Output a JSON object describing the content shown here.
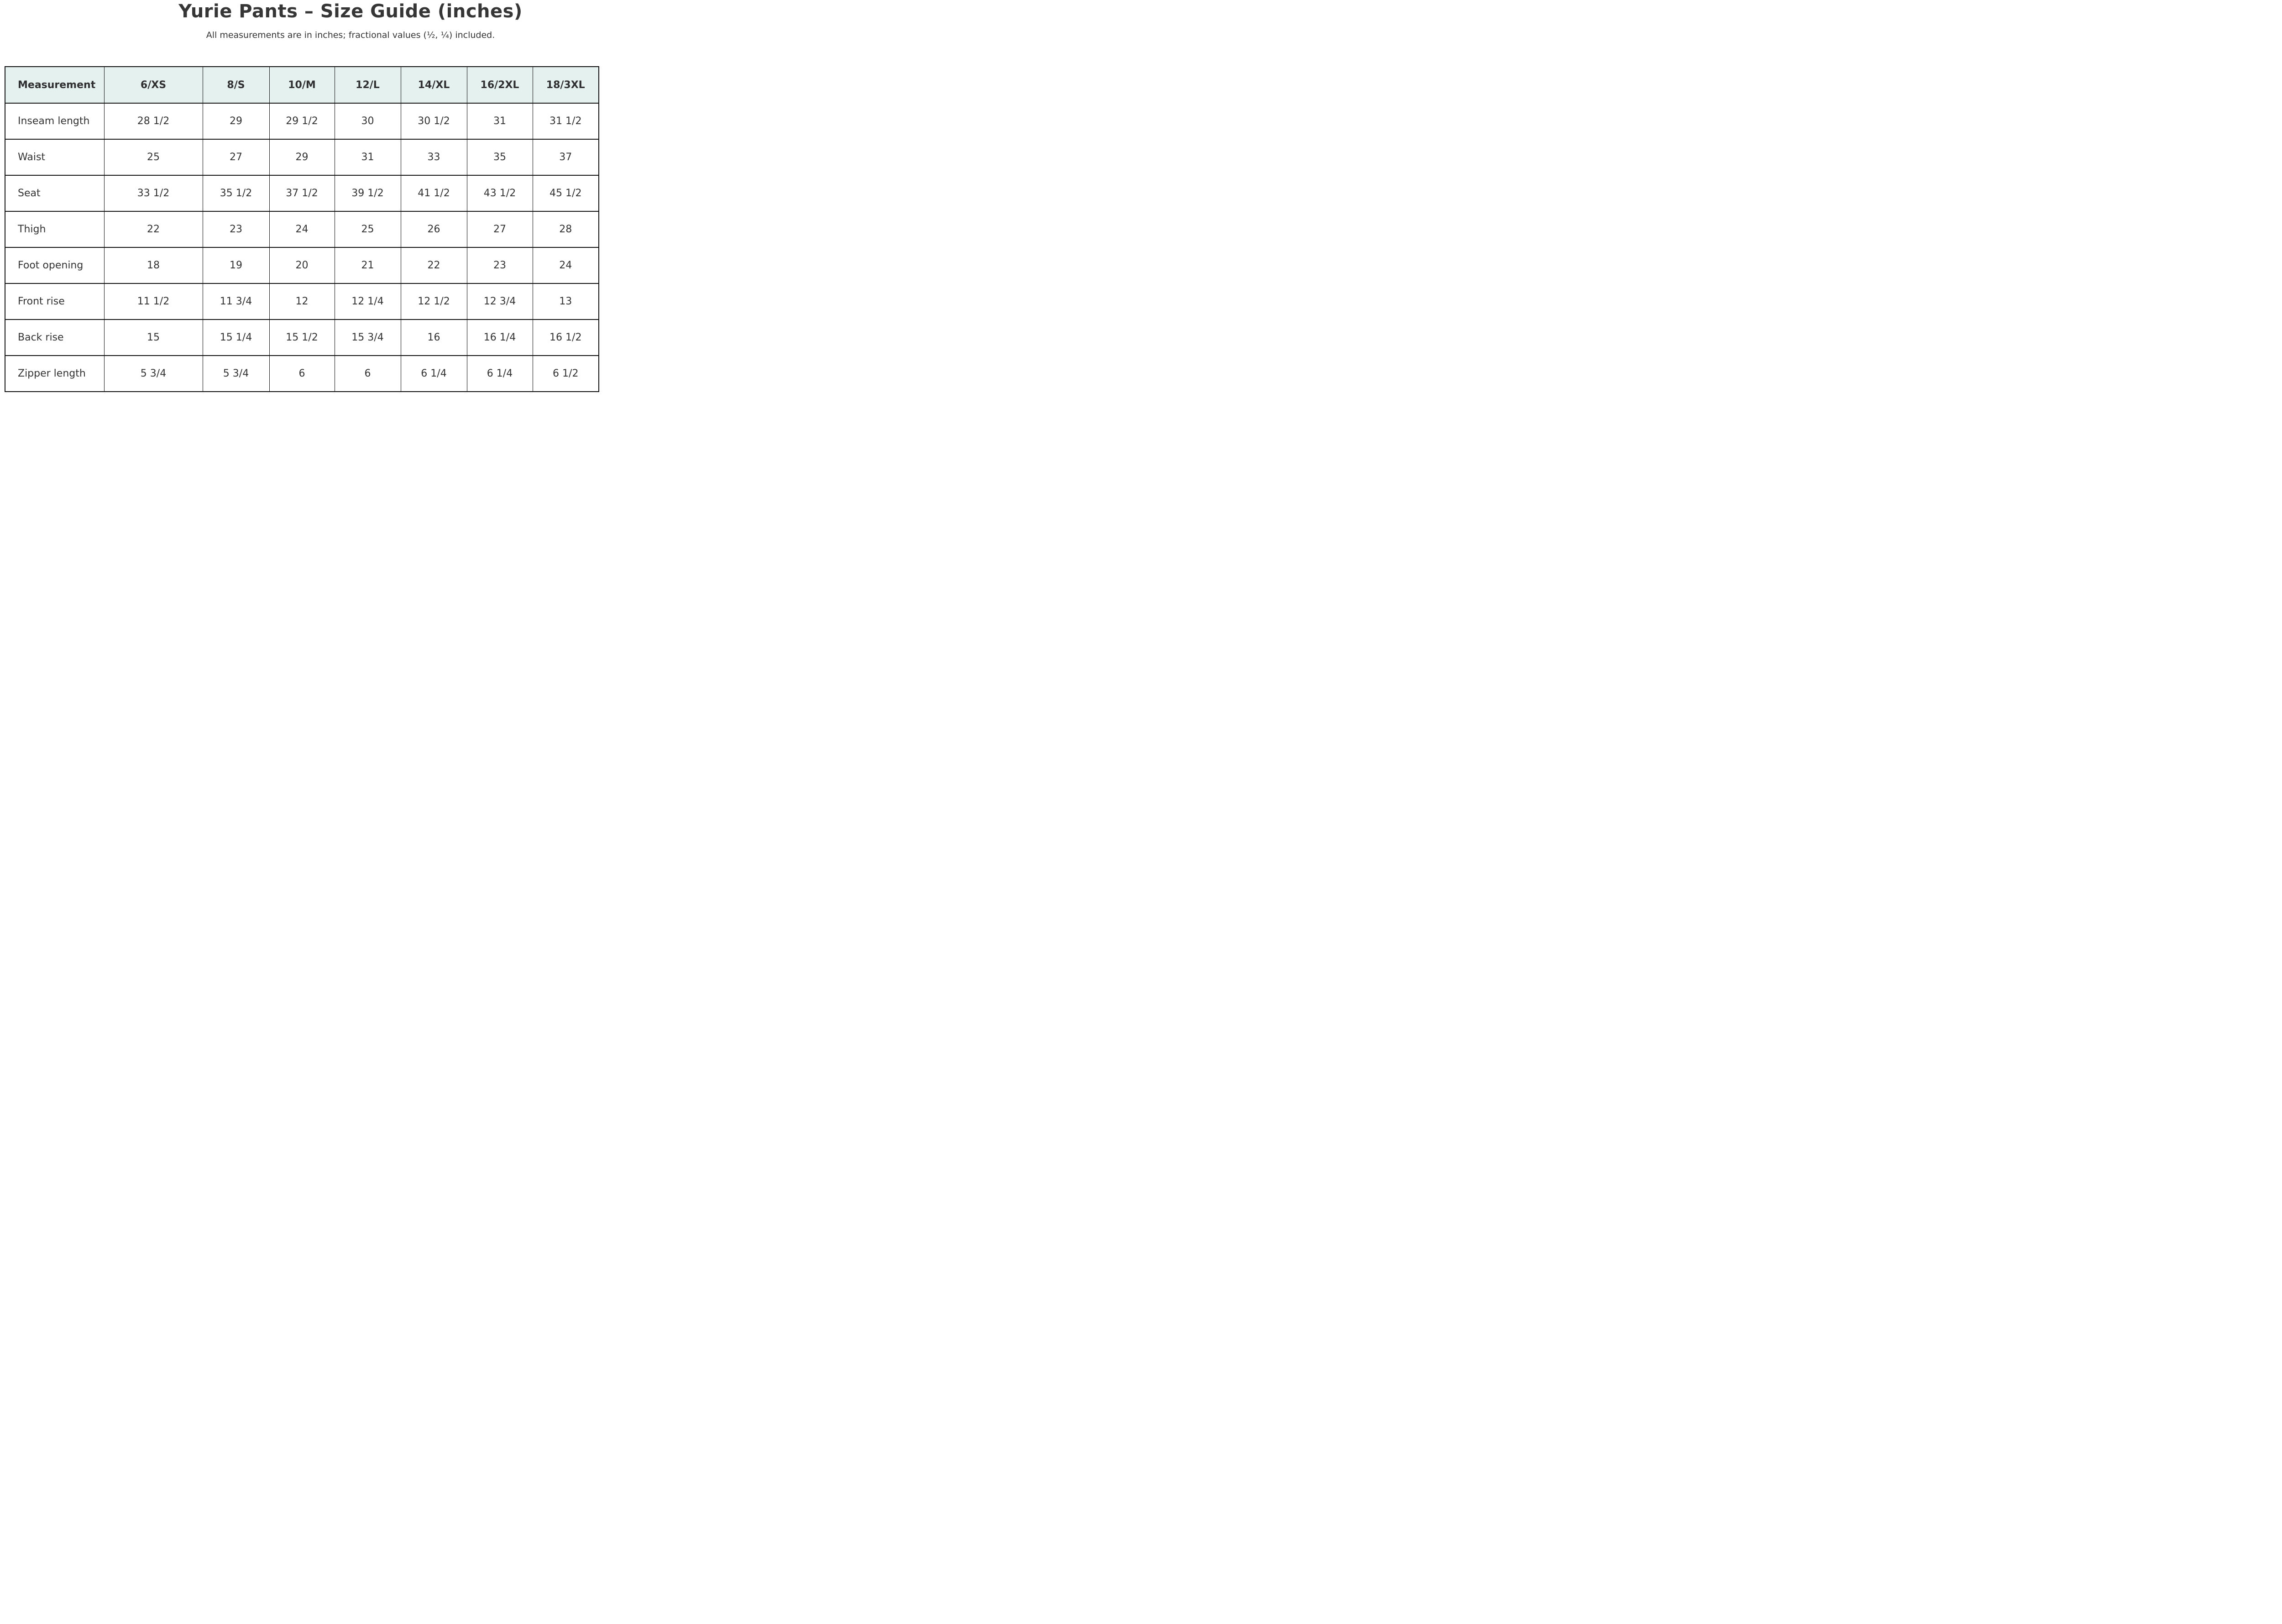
{
  "page": {
    "title": "Yurie Pants – Size Guide (inches)",
    "subtitle": "All measurements are in inches; fractional values (½, ¼) included."
  },
  "colors": {
    "header_bg": "#e5f1ef",
    "border": "#131313",
    "text": "#333333"
  },
  "table": {
    "columns": [
      "Measurement",
      "6/XS",
      "8/S",
      "10/M",
      "12/L",
      "14/XL",
      "16/2XL",
      "18/3XL"
    ],
    "rows": [
      {
        "label": "Inseam length",
        "values": [
          "28 1/2",
          "29",
          "29 1/2",
          "30",
          "30 1/2",
          "31",
          "31 1/2"
        ]
      },
      {
        "label": "Waist",
        "values": [
          "25",
          "27",
          "29",
          "31",
          "33",
          "35",
          "37"
        ]
      },
      {
        "label": "Seat",
        "values": [
          "33 1/2",
          "35 1/2",
          "37 1/2",
          "39 1/2",
          "41 1/2",
          "43 1/2",
          "45 1/2"
        ]
      },
      {
        "label": "Thigh",
        "values": [
          "22",
          "23",
          "24",
          "25",
          "26",
          "27",
          "28"
        ]
      },
      {
        "label": "Foot opening",
        "values": [
          "18",
          "19",
          "20",
          "21",
          "22",
          "23",
          "24"
        ]
      },
      {
        "label": "Front rise",
        "values": [
          "11 1/2",
          "11 3/4",
          "12",
          "12 1/4",
          "12 1/2",
          "12 3/4",
          "13"
        ]
      },
      {
        "label": "Back rise",
        "values": [
          "15",
          "15 1/4",
          "15 1/2",
          "15 3/4",
          "16",
          "16 1/4",
          "16 1/2"
        ]
      },
      {
        "label": "Zipper length",
        "values": [
          "5 3/4",
          "5 3/4",
          "6",
          "6",
          "6 1/4",
          "6 1/4",
          "6 1/2"
        ]
      }
    ]
  }
}
